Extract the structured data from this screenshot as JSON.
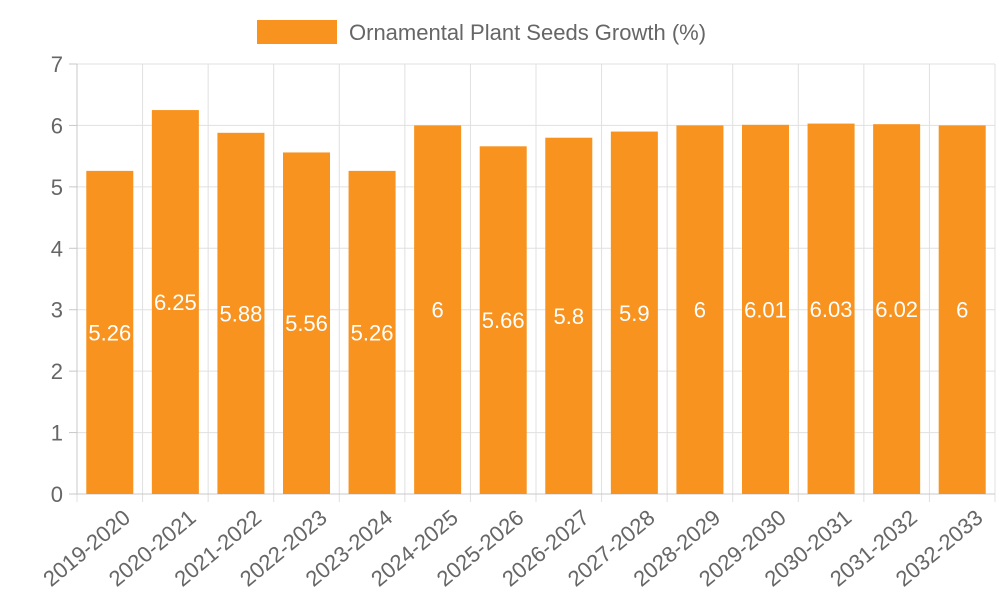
{
  "chart_data": {
    "type": "bar",
    "categories": [
      "2019-2020",
      "2020-2021",
      "2021-2022",
      "2022-2023",
      "2023-2024",
      "2024-2025",
      "2025-2026",
      "2026-2027",
      "2027-2028",
      "2028-2029",
      "2029-2030",
      "2030-2031",
      "2031-2032",
      "2032-2033"
    ],
    "series": [
      {
        "name": "Ornamental Plant Seeds Growth (%)",
        "values": [
          5.26,
          6.25,
          5.88,
          5.56,
          5.26,
          6,
          5.66,
          5.8,
          5.9,
          6,
          6.01,
          6.03,
          6.02,
          6
        ],
        "color": "#f7931e"
      }
    ],
    "title": "",
    "xlabel": "",
    "ylabel": "",
    "ylim": [
      0,
      7
    ],
    "yticks": [
      0,
      1,
      2,
      3,
      4,
      5,
      6,
      7
    ],
    "grid": true,
    "legend": "top-center",
    "data_labels": true
  }
}
